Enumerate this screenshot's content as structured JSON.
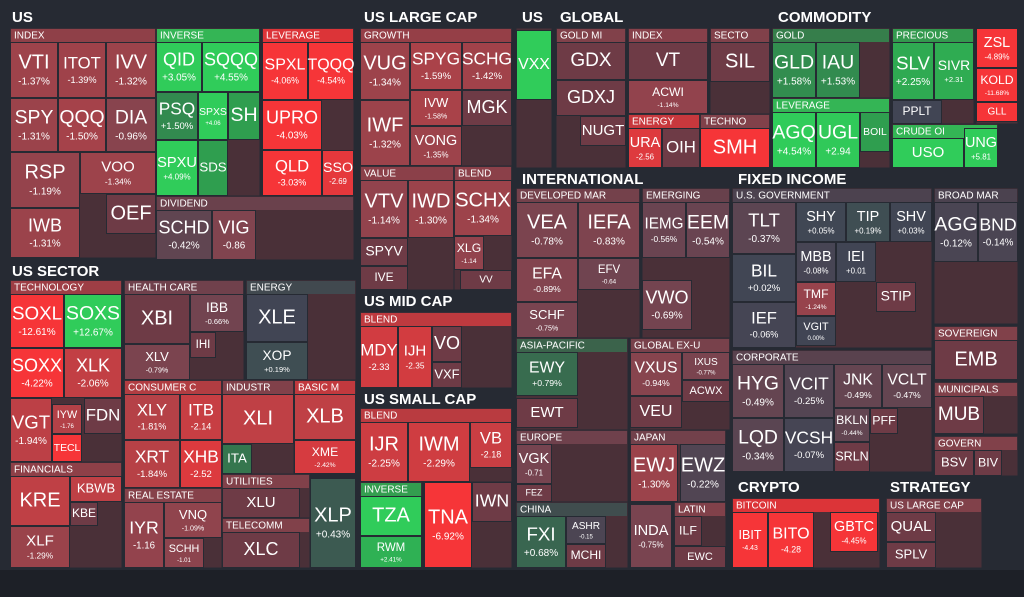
{
  "sections": [
    {
      "title": "US",
      "groups": [
        {
          "name": "INDEX",
          "tiles": [
            {
              "ticker": "VTI",
              "change": "-1.37%"
            },
            {
              "ticker": "ITOT",
              "change": "-1.39%"
            },
            {
              "ticker": "IVV",
              "change": "-1.32%"
            },
            {
              "ticker": "SPY",
              "change": "-1.31%"
            },
            {
              "ticker": "QQQ",
              "change": "-1.50%"
            },
            {
              "ticker": "DIA",
              "change": "-0.96%"
            },
            {
              "ticker": "RSP",
              "change": "-1.19%"
            },
            {
              "ticker": "VOO",
              "change": "-1.34%"
            },
            {
              "ticker": "OEF"
            },
            {
              "ticker": "IWB",
              "change": "-1.31%"
            }
          ]
        },
        {
          "name": "INVERSE",
          "tiles": [
            {
              "ticker": "QID",
              "change": "+3.05%"
            },
            {
              "ticker": "SQQQ",
              "change": "+4.55%"
            },
            {
              "ticker": "PSQ",
              "change": "+1.50%"
            },
            {
              "ticker": "SPXS",
              "change": "+4.06"
            },
            {
              "ticker": "SH",
              "color": "#2f9e4f"
            },
            {
              "ticker": "SPXU",
              "change": "+4.09%"
            },
            {
              "ticker": "SDS",
              "color": "#2f9e4f"
            }
          ]
        },
        {
          "name": "LEVERAGE",
          "tiles": [
            {
              "ticker": "SPXL",
              "change": "-4.06%"
            },
            {
              "ticker": "TQQQ",
              "change": "-4.54%"
            },
            {
              "ticker": "UPRO",
              "change": "-4.03%"
            },
            {
              "ticker": "QLD",
              "change": "-3.03%"
            },
            {
              "ticker": "SSO",
              "change": "-2.69"
            }
          ]
        },
        {
          "name": "DIVIDEND",
          "tiles": [
            {
              "ticker": "SCHD",
              "change": "-0.42%"
            },
            {
              "ticker": "VIG",
              "change": "-0.86"
            }
          ]
        }
      ]
    },
    {
      "title": "US SECTOR",
      "groups": [
        {
          "name": "TECHNOLOGY",
          "tiles": [
            {
              "ticker": "SOXL",
              "change": "-12.61%"
            },
            {
              "ticker": "SOXS",
              "change": "+12.67%"
            },
            {
              "ticker": "SOXX",
              "change": "-4.22%"
            },
            {
              "ticker": "XLK",
              "change": "-2.06%"
            },
            {
              "ticker": "VGT",
              "change": "-1.94%"
            },
            {
              "ticker": "IYW",
              "change": "-1.76"
            },
            {
              "ticker": "FDN"
            },
            {
              "ticker": "TECL",
              "color": "#f63538"
            }
          ]
        },
        {
          "name": "FINANCIALS",
          "tiles": [
            {
              "ticker": "KRE",
              "color": "#bf4045"
            },
            {
              "ticker": "KBWB",
              "color": "#bf4045"
            },
            {
              "ticker": "KBE"
            },
            {
              "ticker": "XLF",
              "change": "-1.29%"
            }
          ]
        },
        {
          "name": "HEALTH CARE",
          "tiles": [
            {
              "ticker": "XBI"
            },
            {
              "ticker": "IBB",
              "change": "-0.66%"
            },
            {
              "ticker": "XLV",
              "change": "-0.79%"
            },
            {
              "ticker": "IHI"
            }
          ]
        },
        {
          "name": "ENERGY",
          "tiles": [
            {
              "ticker": "XLE",
              "color": "#414554"
            },
            {
              "ticker": "XOP",
              "change": "+0.19%"
            }
          ]
        },
        {
          "name": "CONSUMER C",
          "tiles": [
            {
              "ticker": "XLY",
              "change": "-1.81%"
            },
            {
              "ticker": "ITB",
              "change": "-2.14"
            },
            {
              "ticker": "XRT",
              "change": "-1.84%"
            },
            {
              "ticker": "XHB",
              "change": "-2.52"
            }
          ]
        },
        {
          "name": "INDUSTR",
          "tiles": [
            {
              "ticker": "XLI",
              "color": "#bf4045"
            },
            {
              "ticker": "ITA",
              "color": "#35764e"
            }
          ]
        },
        {
          "name": "BASIC M",
          "tiles": [
            {
              "ticker": "XLB",
              "color": "#bf4045"
            },
            {
              "ticker": "XME",
              "change": "-2.42%"
            }
          ]
        },
        {
          "name": "REAL ESTATE",
          "tiles": [
            {
              "ticker": "IYR",
              "change": "-1.16"
            },
            {
              "ticker": "VNQ",
              "change": "-1.09%"
            },
            {
              "ticker": "SCHH",
              "change": "-1.01"
            }
          ]
        },
        {
          "name": "UTILITIES",
          "tiles": [
            {
              "ticker": "XLU"
            }
          ]
        },
        {
          "name": "TELECOMM",
          "tiles": [
            {
              "ticker": "XLC"
            }
          ]
        },
        {
          "tiles": [
            {
              "ticker": "XLP",
              "change": "+0.43%"
            }
          ]
        }
      ]
    },
    {
      "title": "US LARGE CAP",
      "groups": [
        {
          "name": "GROWTH",
          "tiles": [
            {
              "ticker": "VUG",
              "change": "-1.34%"
            },
            {
              "ticker": "SPYG",
              "change": "-1.59%"
            },
            {
              "ticker": "SCHG",
              "change": "-1.42%"
            },
            {
              "ticker": "IWF",
              "change": "-1.32%"
            },
            {
              "ticker": "IVW",
              "change": "-1.58%"
            },
            {
              "ticker": "MGK"
            },
            {
              "ticker": "VONG",
              "change": "-1.35%"
            }
          ]
        },
        {
          "name": "VALUE",
          "tiles": [
            {
              "ticker": "VTV",
              "change": "-1.14%"
            },
            {
              "ticker": "IWD",
              "change": "-1.30%"
            },
            {
              "ticker": "SPYV"
            },
            {
              "ticker": "IVE"
            }
          ]
        },
        {
          "name": "BLEND",
          "tiles": [
            {
              "ticker": "SCHX",
              "change": "-1.34%"
            },
            {
              "ticker": "XLG",
              "change": "-1.14"
            },
            {
              "ticker": "VV"
            }
          ]
        }
      ]
    },
    {
      "title": "US MID CAP",
      "groups": [
        {
          "name": "BLEND",
          "tiles": [
            {
              "ticker": "MDY",
              "change": "-2.33"
            },
            {
              "ticker": "IJH",
              "change": "-2.35"
            },
            {
              "ticker": "VO"
            },
            {
              "ticker": "VXF"
            }
          ]
        }
      ]
    },
    {
      "title": "US SMALL CAP",
      "groups": [
        {
          "name": "BLEND",
          "tiles": [
            {
              "ticker": "IJR",
              "change": "-2.25%"
            },
            {
              "ticker": "IWM",
              "change": "-2.29%"
            },
            {
              "ticker": "VB",
              "change": "-2.18"
            }
          ]
        },
        {
          "name": "INVERSE",
          "tiles": [
            {
              "ticker": "TZA",
              "color": "#30cc5a"
            },
            {
              "ticker": "RWM",
              "change": "+2.41%"
            }
          ]
        },
        {
          "tiles": [
            {
              "ticker": "TNA",
              "change": "-6.92%"
            },
            {
              "ticker": "IWN"
            }
          ]
        }
      ]
    },
    {
      "title": "US",
      "groups": [
        {
          "tiles": [
            {
              "ticker": "VXX",
              "color": "#30cc5a"
            }
          ]
        }
      ]
    },
    {
      "title": "GLOBAL",
      "groups": [
        {
          "name": "GOLD MI",
          "tiles": [
            {
              "ticker": "GDX"
            },
            {
              "ticker": "GDXJ"
            },
            {
              "ticker": "NUGT"
            }
          ]
        },
        {
          "name": "INDEX",
          "tiles": [
            {
              "ticker": "VT"
            },
            {
              "ticker": "ACWI",
              "change": "-1.14%"
            }
          ]
        },
        {
          "name": "ENERGY",
          "tiles": [
            {
              "ticker": "URA",
              "change": "-2.56"
            },
            {
              "ticker": "OIH"
            }
          ]
        },
        {
          "name": "SECTO",
          "tiles": [
            {
              "ticker": "SIL"
            }
          ]
        },
        {
          "name": "TECHNO",
          "tiles": [
            {
              "ticker": "SMH",
              "color": "#f63538"
            }
          ]
        }
      ]
    },
    {
      "title": "COMMODITY",
      "groups": [
        {
          "name": "GOLD",
          "tiles": [
            {
              "ticker": "GLD",
              "change": "+1.58%"
            },
            {
              "ticker": "IAU",
              "change": "+1.53%"
            }
          ]
        },
        {
          "name": "LEVERAGE",
          "tiles": [
            {
              "ticker": "AGQ",
              "change": "+4.54%"
            },
            {
              "ticker": "UGL",
              "change": "+2.94"
            },
            {
              "ticker": "BOIL",
              "color": "#2f9e4f"
            }
          ]
        },
        {
          "name": "PRECIOUS",
          "tiles": [
            {
              "ticker": "SLV",
              "change": "+2.25%"
            },
            {
              "ticker": "SIVR",
              "change": "+2.31"
            },
            {
              "ticker": "PPLT",
              "color": "#414554"
            }
          ]
        },
        {
          "name": "CRUDE OI",
          "tiles": [
            {
              "ticker": "USO",
              "color": "#30cc5a"
            },
            {
              "ticker": "UNG",
              "change": "+5.81"
            }
          ]
        },
        {
          "tiles": [
            {
              "ticker": "ZSL",
              "change": "-4.89%"
            },
            {
              "ticker": "KOLD",
              "change": "-11.68%"
            },
            {
              "ticker": "GLL",
              "color": "#f63538"
            }
          ]
        }
      ]
    },
    {
      "title": "INTERNATIONAL",
      "groups": [
        {
          "name": "DEVELOPED MAR",
          "tiles": [
            {
              "ticker": "VEA",
              "change": "-0.78%"
            },
            {
              "ticker": "IEFA",
              "change": "-0.83%"
            },
            {
              "ticker": "EFA",
              "change": "-0.89%"
            },
            {
              "ticker": "EFV",
              "change": "-0.64"
            },
            {
              "ticker": "SCHF",
              "change": "-0.75%"
            }
          ]
        },
        {
          "name": "EMERGING",
          "tiles": [
            {
              "ticker": "IEMG",
              "change": "-0.56%"
            },
            {
              "ticker": "EEM",
              "change": "-0.54%"
            },
            {
              "ticker": "VWO",
              "change": "-0.69%"
            }
          ]
        },
        {
          "name": "ASIA-PACIFIC",
          "tiles": [
            {
              "ticker": "EWY",
              "change": "+0.79%"
            },
            {
              "ticker": "EWT"
            }
          ]
        },
        {
          "name": "GLOBAL EX-U",
          "tiles": [
            {
              "ticker": "VXUS",
              "change": "-0.94%"
            },
            {
              "ticker": "IXUS",
              "change": "-0.77%"
            },
            {
              "ticker": "ACWX"
            },
            {
              "ticker": "VEU"
            }
          ]
        },
        {
          "name": "EUROPE",
          "tiles": [
            {
              "ticker": "VGK",
              "change": "-0.71"
            },
            {
              "ticker": "FEZ"
            }
          ]
        },
        {
          "name": "JAPAN",
          "tiles": [
            {
              "ticker": "EWJ",
              "change": "-1.30%"
            },
            {
              "ticker": "EWZ",
              "change": "-0.22%"
            }
          ]
        },
        {
          "name": "CHINA",
          "tiles": [
            {
              "ticker": "FXI",
              "change": "+0.68%"
            },
            {
              "ticker": "ASHR",
              "change": "-0.15"
            },
            {
              "ticker": "MCHI"
            }
          ]
        },
        {
          "tiles": [
            {
              "ticker": "INDA",
              "change": "-0.75%"
            }
          ]
        },
        {
          "name": "LATIN",
          "tiles": [
            {
              "ticker": "ILF"
            },
            {
              "ticker": "EWC"
            }
          ]
        }
      ]
    },
    {
      "title": "FIXED INCOME",
      "groups": [
        {
          "name": "U.S. GOVERNMENT",
          "tiles": [
            {
              "ticker": "TLT",
              "change": "-0.37%"
            },
            {
              "ticker": "SHY",
              "change": "+0.05%"
            },
            {
              "ticker": "TIP",
              "change": "+0.19%"
            },
            {
              "ticker": "SHV",
              "change": "+0.03%"
            },
            {
              "ticker": "BIL",
              "change": "+0.02%"
            },
            {
              "ticker": "MBB",
              "change": "-0.08%"
            },
            {
              "ticker": "IEI",
              "change": "+0.01"
            },
            {
              "ticker": "TMF",
              "change": "-1.24%"
            },
            {
              "ticker": "VGIT",
              "change": "0.00%"
            },
            {
              "ticker": "IEF",
              "change": "-0.06%"
            },
            {
              "ticker": "STIP"
            }
          ]
        },
        {
          "name": "CORPORATE",
          "tiles": [
            {
              "ticker": "HYG",
              "change": "-0.49%"
            },
            {
              "ticker": "VCIT",
              "change": "-0.25%"
            },
            {
              "ticker": "JNK",
              "change": "-0.49%"
            },
            {
              "ticker": "VCLT",
              "change": "-0.47%"
            },
            {
              "ticker": "LQD",
              "change": "-0.34%"
            },
            {
              "ticker": "VCSH",
              "change": "-0.07%"
            },
            {
              "ticker": "BKLN",
              "change": "-0.44%"
            },
            {
              "ticker": "PFF"
            },
            {
              "ticker": "SRLN"
            }
          ]
        },
        {
          "name": "BROAD MAR",
          "tiles": [
            {
              "ticker": "AGG",
              "change": "-0.12%"
            },
            {
              "ticker": "BND",
              "change": "-0.14%"
            }
          ]
        },
        {
          "name": "SOVEREIGN",
          "tiles": [
            {
              "ticker": "EMB"
            }
          ]
        },
        {
          "name": "MUNICIPALS",
          "tiles": [
            {
              "ticker": "MUB"
            }
          ]
        },
        {
          "name": "GOVERN",
          "tiles": [
            {
              "ticker": "BSV"
            },
            {
              "ticker": "BIV"
            }
          ]
        }
      ]
    },
    {
      "title": "CRYPTO",
      "groups": [
        {
          "name": "BITCOIN",
          "tiles": [
            {
              "ticker": "IBIT",
              "change": "-4.43"
            },
            {
              "ticker": "BITO",
              "change": "-4.28"
            },
            {
              "ticker": "GBTC",
              "change": "-4.45%"
            }
          ]
        }
      ]
    },
    {
      "title": "STRATEGY",
      "groups": [
        {
          "name": "US LARGE CAP",
          "tiles": [
            {
              "ticker": "QUAL"
            },
            {
              "ticker": "SPLV"
            }
          ]
        }
      ]
    }
  ]
}
